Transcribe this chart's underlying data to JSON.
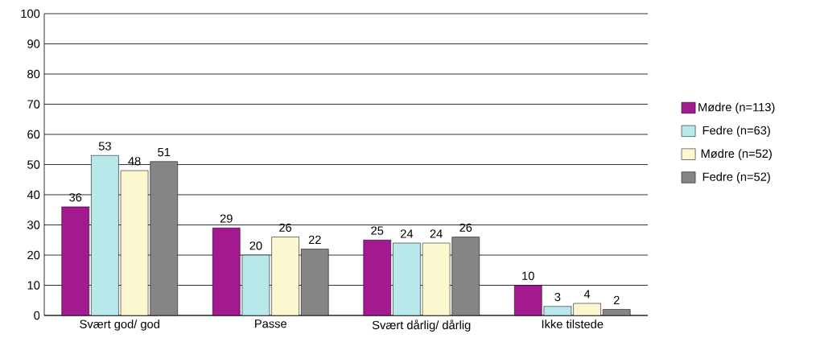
{
  "chart_data": {
    "type": "bar",
    "categories": [
      "Svært god/ god",
      "Passe",
      "Svært dårlig/ dårlig",
      "Ikke tilstede"
    ],
    "series": [
      {
        "name": "Mødre (n=113)",
        "color": "#a3198f",
        "values": [
          36,
          29,
          25,
          10
        ]
      },
      {
        "name": "Fedre (n=63)",
        "color": "#b8e8ea",
        "values": [
          53,
          20,
          24,
          3
        ]
      },
      {
        "name": "Mødre (n=52)",
        "color": "#fdf7cf",
        "values": [
          48,
          26,
          24,
          4
        ]
      },
      {
        "name": "Fedre (n=52)",
        "color": "#858585",
        "values": [
          51,
          22,
          26,
          2
        ]
      }
    ],
    "ylim": [
      0,
      100
    ],
    "yticks": [
      0,
      10,
      20,
      30,
      40,
      50,
      60,
      70,
      80,
      90,
      100
    ],
    "grid": "y",
    "legend": "right",
    "data_labels": true
  }
}
